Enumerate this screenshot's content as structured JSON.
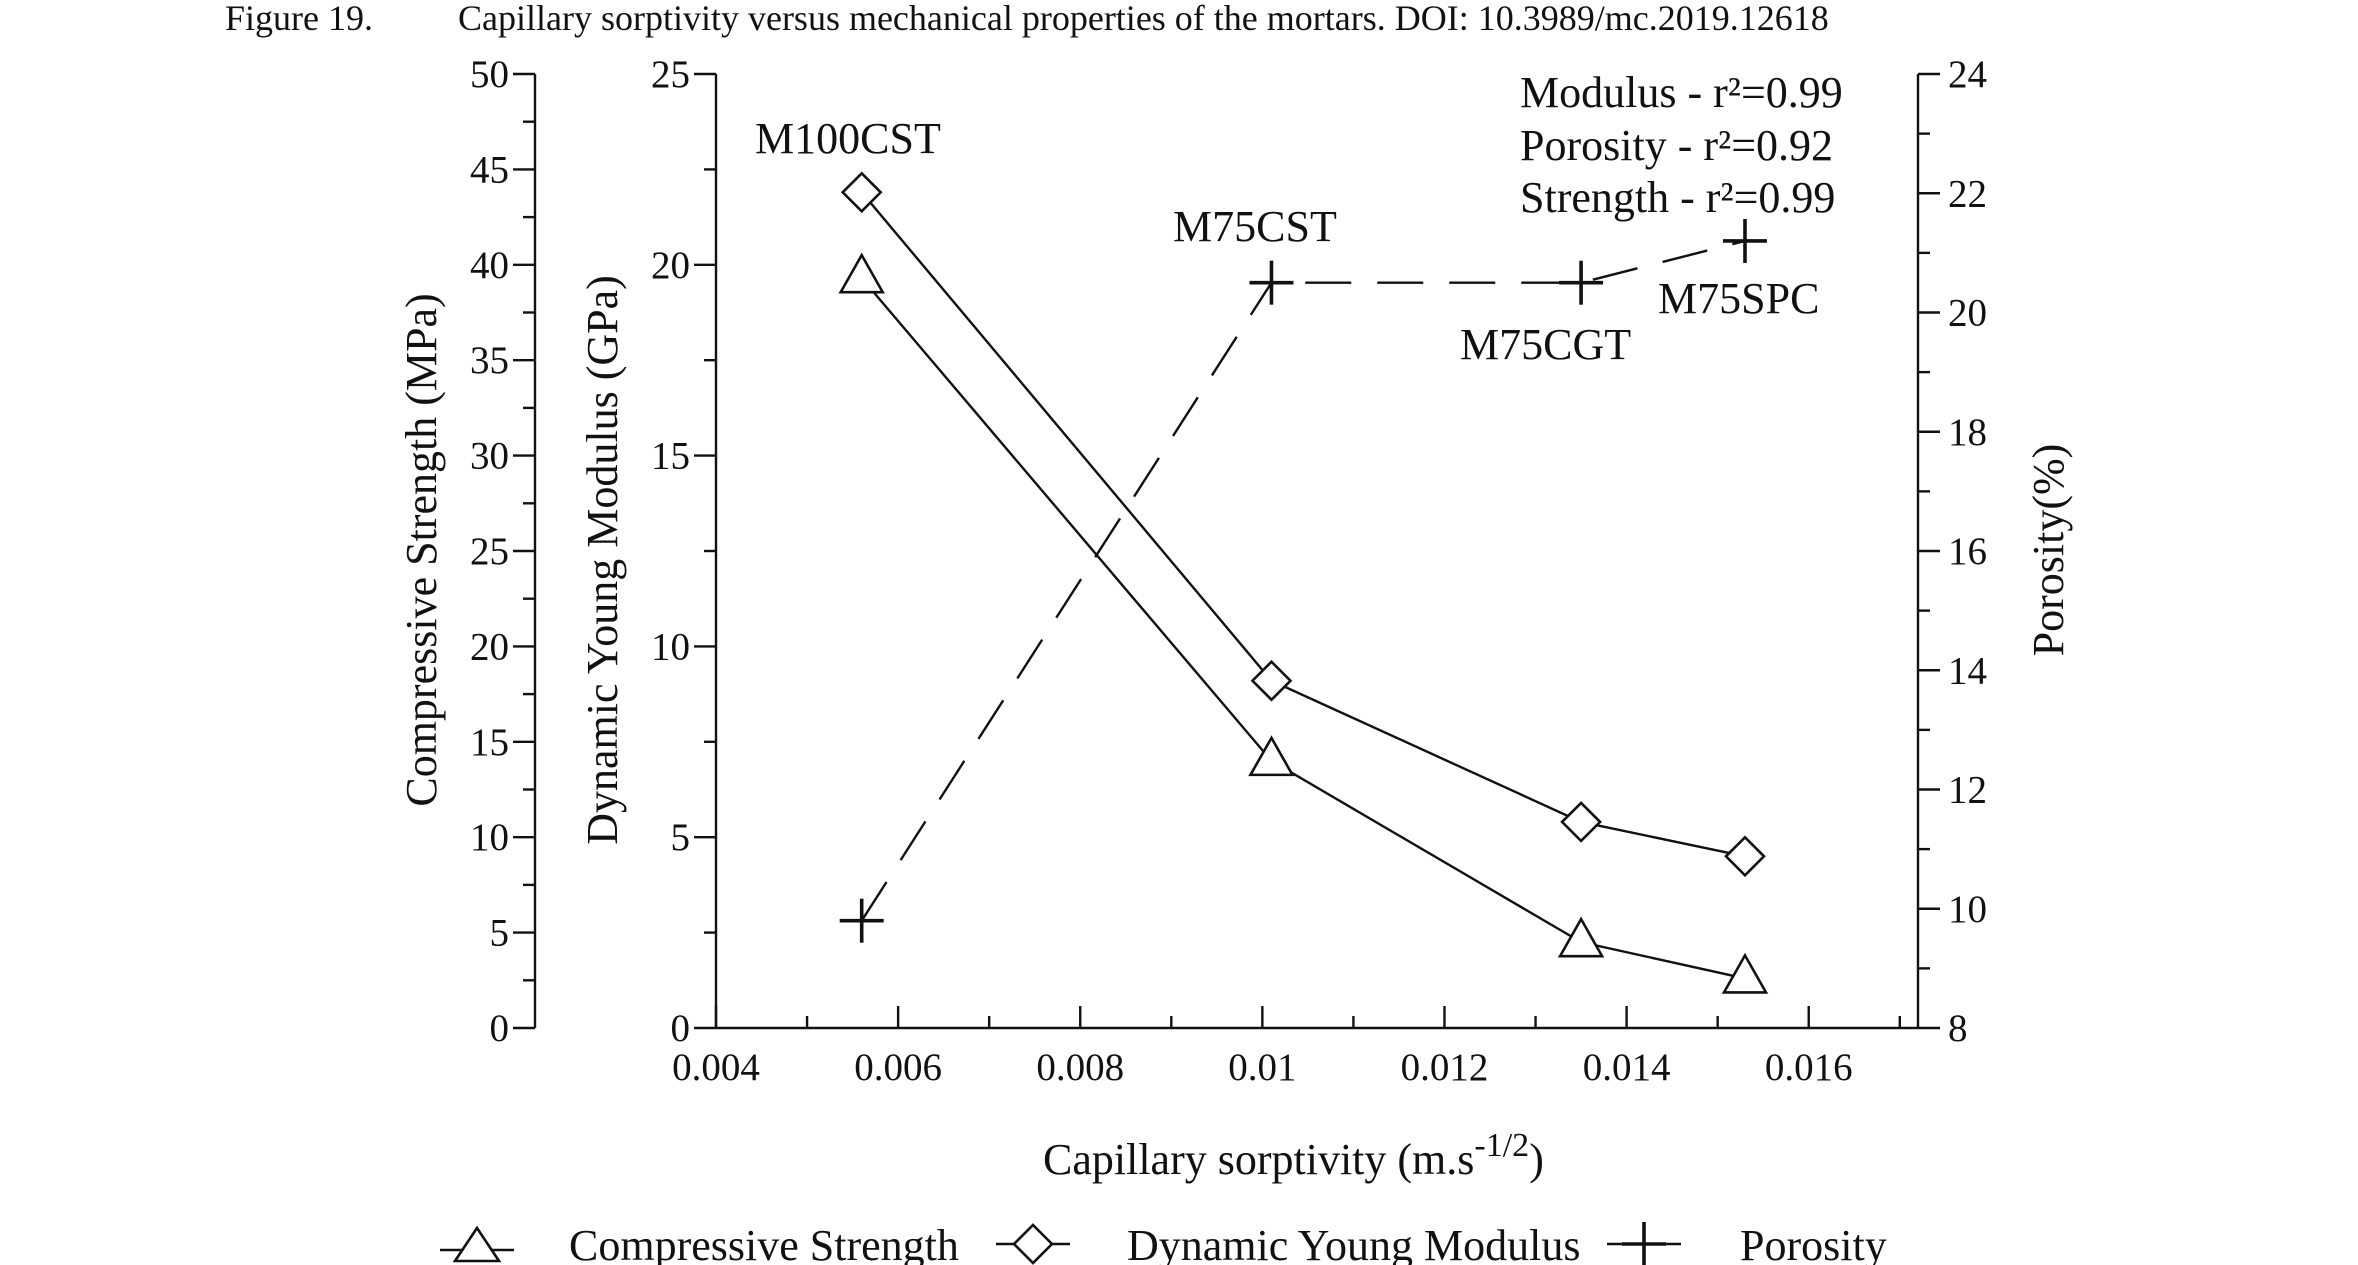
{
  "caption": {
    "label": "Figure 19.",
    "text": "Capillary sorptivity versus mechanical properties of the mortars. DOI: 10.3989/mc.2019.12618"
  },
  "chart_data": {
    "type": "line",
    "title": "",
    "xlabel": "Capillary sorptivity (m.s",
    "xlabel_superscript": "-1/2",
    "xlabel_close": ")",
    "xlim": [
      0.004,
      0.0172
    ],
    "x_ticks": [
      "0.004",
      "0.006",
      "0.008",
      "0.01",
      "0.012",
      "0.014",
      "0.016"
    ],
    "x_tick_values": [
      0.004,
      0.006,
      0.008,
      0.01,
      0.012,
      0.014,
      0.016
    ],
    "x_minor_step": 0.001,
    "axes": {
      "strength": {
        "label": "Compressive Strength (MPa)",
        "range": [
          0,
          50
        ],
        "ticks": [
          "0",
          "5",
          "10",
          "15",
          "20",
          "25",
          "30",
          "35",
          "40",
          "45",
          "50"
        ],
        "tick_values": [
          0,
          5,
          10,
          15,
          20,
          25,
          30,
          35,
          40,
          45,
          50
        ],
        "minor_step": 2.5
      },
      "modulus": {
        "label": "Dynamic Young Modulus (GPa)",
        "range": [
          0,
          25
        ],
        "ticks": [
          "0",
          "5",
          "10",
          "15",
          "20",
          "25"
        ],
        "tick_values": [
          0,
          5,
          10,
          15,
          20,
          25
        ],
        "minor_step": 2.5
      },
      "porosity": {
        "label": "Porosity(%)",
        "range": [
          8,
          24
        ],
        "ticks": [
          "8",
          "10",
          "12",
          "14",
          "16",
          "18",
          "20",
          "22",
          "24"
        ],
        "tick_values": [
          8,
          10,
          12,
          14,
          16,
          18,
          20,
          22,
          24
        ],
        "minor_step": 1
      }
    },
    "series": [
      {
        "name": "Compressive Strength",
        "axis": "strength",
        "marker": "triangle",
        "line": "solid",
        "x": [
          0.0056,
          0.0101,
          0.0135,
          0.0153
        ],
        "y": [
          39.3,
          14.0,
          4.5,
          2.6
        ]
      },
      {
        "name": "Dynamic Young Modulus",
        "axis": "modulus",
        "marker": "diamond",
        "line": "solid",
        "x": [
          0.0056,
          0.0101,
          0.0135,
          0.0153
        ],
        "y": [
          21.9,
          9.1,
          5.4,
          4.5
        ]
      },
      {
        "name": "Porosity",
        "axis": "porosity",
        "marker": "plus",
        "line": "dashed",
        "x": [
          0.0056,
          0.0101,
          0.0135,
          0.0153
        ],
        "y": [
          9.8,
          20.5,
          20.5,
          21.2
        ]
      }
    ],
    "point_labels": [
      "M100CST",
      "M75CST",
      "M75CGT",
      "M75SPC"
    ],
    "annotations": [
      "Modulus - r²=0.99",
      "Porosity - r²=0.92",
      "Strength - r²=0.99"
    ],
    "grid": false,
    "legend_position": "bottom"
  }
}
